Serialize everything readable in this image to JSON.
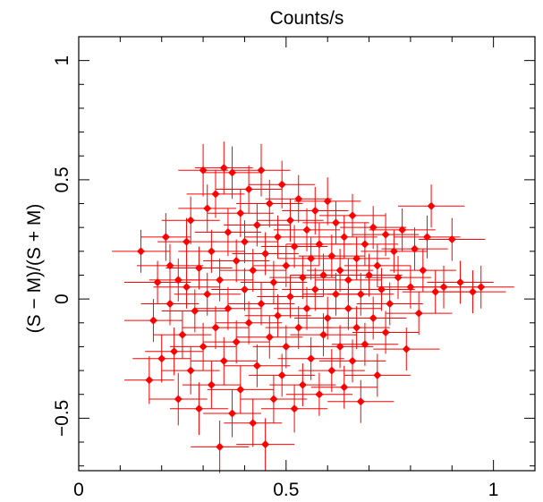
{
  "chart_data": {
    "type": "scatter",
    "title": "Counts/s",
    "xlabel": "",
    "ylabel": "(S − M)/(S + M)",
    "xlim": [
      0,
      1.1
    ],
    "ylim": [
      -0.72,
      1.1
    ],
    "x_ticks": [
      0,
      0.5,
      1
    ],
    "x_tick_labels": [
      "0",
      "0.5",
      "1"
    ],
    "y_ticks": [
      -0.5,
      0,
      0.5,
      1
    ],
    "y_tick_labels": [
      "−0.5",
      "0",
      "0.5",
      "1"
    ],
    "grid": false,
    "marker": "diamond",
    "error_bars": true,
    "color": "#ff0000",
    "series": [
      {
        "points": [
          {
            "x": 0.15,
            "y": 0.2,
            "xerr": 0.07,
            "yerr": 0.09
          },
          {
            "x": 0.17,
            "y": -0.34,
            "xerr": 0.06,
            "yerr": 0.1
          },
          {
            "x": 0.18,
            "y": -0.09,
            "xerr": 0.07,
            "yerr": 0.09
          },
          {
            "x": 0.19,
            "y": 0.07,
            "xerr": 0.08,
            "yerr": 0.09
          },
          {
            "x": 0.2,
            "y": -0.25,
            "xerr": 0.07,
            "yerr": 0.1
          },
          {
            "x": 0.21,
            "y": 0.26,
            "xerr": 0.06,
            "yerr": 0.1
          },
          {
            "x": 0.22,
            "y": -0.02,
            "xerr": 0.07,
            "yerr": 0.09
          },
          {
            "x": 0.22,
            "y": 0.14,
            "xerr": 0.08,
            "yerr": 0.09
          },
          {
            "x": 0.23,
            "y": -0.22,
            "xerr": 0.07,
            "yerr": 0.1
          },
          {
            "x": 0.24,
            "y": 0.08,
            "xerr": 0.07,
            "yerr": 0.09
          },
          {
            "x": 0.24,
            "y": -0.42,
            "xerr": 0.07,
            "yerr": 0.11
          },
          {
            "x": 0.25,
            "y": -0.15,
            "xerr": 0.07,
            "yerr": 0.1
          },
          {
            "x": 0.26,
            "y": 0.05,
            "xerr": 0.08,
            "yerr": 0.09
          },
          {
            "x": 0.26,
            "y": 0.24,
            "xerr": 0.07,
            "yerr": 0.1
          },
          {
            "x": 0.27,
            "y": -0.3,
            "xerr": 0.07,
            "yerr": 0.1
          },
          {
            "x": 0.27,
            "y": 0.33,
            "xerr": 0.07,
            "yerr": 0.1
          },
          {
            "x": 0.28,
            "y": -0.05,
            "xerr": 0.08,
            "yerr": 0.09
          },
          {
            "x": 0.29,
            "y": 0.13,
            "xerr": 0.08,
            "yerr": 0.09
          },
          {
            "x": 0.29,
            "y": -0.46,
            "xerr": 0.07,
            "yerr": 0.11
          },
          {
            "x": 0.3,
            "y": 0.54,
            "xerr": 0.06,
            "yerr": 0.11
          },
          {
            "x": 0.3,
            "y": -0.2,
            "xerr": 0.08,
            "yerr": 0.1
          },
          {
            "x": 0.31,
            "y": 0.38,
            "xerr": 0.07,
            "yerr": 0.1
          },
          {
            "x": 0.31,
            "y": 0.02,
            "xerr": 0.08,
            "yerr": 0.09
          },
          {
            "x": 0.32,
            "y": -0.36,
            "xerr": 0.07,
            "yerr": 0.1
          },
          {
            "x": 0.32,
            "y": 0.2,
            "xerr": 0.08,
            "yerr": 0.09
          },
          {
            "x": 0.33,
            "y": -0.12,
            "xerr": 0.08,
            "yerr": 0.09
          },
          {
            "x": 0.33,
            "y": 0.44,
            "xerr": 0.07,
            "yerr": 0.1
          },
          {
            "x": 0.34,
            "y": -0.62,
            "xerr": 0.07,
            "yerr": 0.11
          },
          {
            "x": 0.34,
            "y": 0.08,
            "xerr": 0.08,
            "yerr": 0.09
          },
          {
            "x": 0.35,
            "y": 0.55,
            "xerr": 0.07,
            "yerr": 0.11
          },
          {
            "x": 0.35,
            "y": -0.26,
            "xerr": 0.08,
            "yerr": 0.1
          },
          {
            "x": 0.36,
            "y": 0.28,
            "xerr": 0.08,
            "yerr": 0.1
          },
          {
            "x": 0.36,
            "y": -0.04,
            "xerr": 0.08,
            "yerr": 0.09
          },
          {
            "x": 0.37,
            "y": 0.53,
            "xerr": 0.07,
            "yerr": 0.11
          },
          {
            "x": 0.37,
            "y": -0.48,
            "xerr": 0.07,
            "yerr": 0.1
          },
          {
            "x": 0.38,
            "y": 0.16,
            "xerr": 0.08,
            "yerr": 0.09
          },
          {
            "x": 0.38,
            "y": -0.18,
            "xerr": 0.08,
            "yerr": 0.09
          },
          {
            "x": 0.39,
            "y": 0.36,
            "xerr": 0.08,
            "yerr": 0.1
          },
          {
            "x": 0.39,
            "y": -0.38,
            "xerr": 0.08,
            "yerr": 0.1
          },
          {
            "x": 0.4,
            "y": 0.04,
            "xerr": 0.08,
            "yerr": 0.09
          },
          {
            "x": 0.4,
            "y": 0.24,
            "xerr": 0.08,
            "yerr": 0.09
          },
          {
            "x": 0.41,
            "y": -0.1,
            "xerr": 0.08,
            "yerr": 0.09
          },
          {
            "x": 0.41,
            "y": 0.46,
            "xerr": 0.08,
            "yerr": 0.1
          },
          {
            "x": 0.42,
            "y": -0.52,
            "xerr": 0.07,
            "yerr": 0.1
          },
          {
            "x": 0.42,
            "y": 0.12,
            "xerr": 0.08,
            "yerr": 0.09
          },
          {
            "x": 0.43,
            "y": -0.28,
            "xerr": 0.08,
            "yerr": 0.09
          },
          {
            "x": 0.43,
            "y": 0.31,
            "xerr": 0.08,
            "yerr": 0.09
          },
          {
            "x": 0.44,
            "y": 0.54,
            "xerr": 0.07,
            "yerr": 0.11
          },
          {
            "x": 0.44,
            "y": -0.02,
            "xerr": 0.08,
            "yerr": 0.09
          },
          {
            "x": 0.45,
            "y": 0.19,
            "xerr": 0.08,
            "yerr": 0.09
          },
          {
            "x": 0.45,
            "y": -0.61,
            "xerr": 0.07,
            "yerr": 0.11
          },
          {
            "x": 0.46,
            "y": -0.16,
            "xerr": 0.08,
            "yerr": 0.09
          },
          {
            "x": 0.46,
            "y": 0.4,
            "xerr": 0.08,
            "yerr": 0.1
          },
          {
            "x": 0.47,
            "y": 0.07,
            "xerr": 0.08,
            "yerr": 0.09
          },
          {
            "x": 0.47,
            "y": -0.42,
            "xerr": 0.08,
            "yerr": 0.1
          },
          {
            "x": 0.48,
            "y": 0.26,
            "xerr": 0.08,
            "yerr": 0.09
          },
          {
            "x": 0.48,
            "y": -0.07,
            "xerr": 0.08,
            "yerr": 0.09
          },
          {
            "x": 0.49,
            "y": 0.48,
            "xerr": 0.08,
            "yerr": 0.1
          },
          {
            "x": 0.49,
            "y": -0.32,
            "xerr": 0.08,
            "yerr": 0.09
          },
          {
            "x": 0.5,
            "y": 0.14,
            "xerr": 0.08,
            "yerr": 0.09
          },
          {
            "x": 0.5,
            "y": -0.2,
            "xerr": 0.08,
            "yerr": 0.09
          },
          {
            "x": 0.51,
            "y": 0.33,
            "xerr": 0.08,
            "yerr": 0.09
          },
          {
            "x": 0.51,
            "y": 0.01,
            "xerr": 0.08,
            "yerr": 0.09
          },
          {
            "x": 0.52,
            "y": -0.46,
            "xerr": 0.08,
            "yerr": 0.1
          },
          {
            "x": 0.52,
            "y": 0.22,
            "xerr": 0.08,
            "yerr": 0.09
          },
          {
            "x": 0.53,
            "y": -0.12,
            "xerr": 0.08,
            "yerr": 0.09
          },
          {
            "x": 0.53,
            "y": 0.42,
            "xerr": 0.08,
            "yerr": 0.1
          },
          {
            "x": 0.54,
            "y": 0.09,
            "xerr": 0.08,
            "yerr": 0.09
          },
          {
            "x": 0.54,
            "y": -0.36,
            "xerr": 0.08,
            "yerr": 0.09
          },
          {
            "x": 0.55,
            "y": 0.29,
            "xerr": 0.08,
            "yerr": 0.09
          },
          {
            "x": 0.55,
            "y": -0.04,
            "xerr": 0.08,
            "yerr": 0.09
          },
          {
            "x": 0.56,
            "y": 0.17,
            "xerr": 0.08,
            "yerr": 0.09
          },
          {
            "x": 0.56,
            "y": -0.25,
            "xerr": 0.08,
            "yerr": 0.09
          },
          {
            "x": 0.57,
            "y": 0.37,
            "xerr": 0.08,
            "yerr": 0.1
          },
          {
            "x": 0.57,
            "y": 0.04,
            "xerr": 0.08,
            "yerr": 0.09
          },
          {
            "x": 0.58,
            "y": -0.4,
            "xerr": 0.08,
            "yerr": 0.09
          },
          {
            "x": 0.58,
            "y": 0.23,
            "xerr": 0.08,
            "yerr": 0.09
          },
          {
            "x": 0.59,
            "y": -0.15,
            "xerr": 0.08,
            "yerr": 0.09
          },
          {
            "x": 0.59,
            "y": 0.1,
            "xerr": 0.08,
            "yerr": 0.09
          },
          {
            "x": 0.6,
            "y": 0.41,
            "xerr": 0.08,
            "yerr": 0.1
          },
          {
            "x": 0.6,
            "y": -0.08,
            "xerr": 0.08,
            "yerr": 0.09
          },
          {
            "x": 0.61,
            "y": 0.18,
            "xerr": 0.08,
            "yerr": 0.09
          },
          {
            "x": 0.61,
            "y": -0.3,
            "xerr": 0.08,
            "yerr": 0.09
          },
          {
            "x": 0.62,
            "y": 0.02,
            "xerr": 0.08,
            "yerr": 0.09
          },
          {
            "x": 0.62,
            "y": 0.32,
            "xerr": 0.08,
            "yerr": 0.09
          },
          {
            "x": 0.63,
            "y": -0.2,
            "xerr": 0.08,
            "yerr": 0.09
          },
          {
            "x": 0.63,
            "y": 0.12,
            "xerr": 0.08,
            "yerr": 0.09
          },
          {
            "x": 0.64,
            "y": -0.37,
            "xerr": 0.08,
            "yerr": 0.09
          },
          {
            "x": 0.64,
            "y": 0.26,
            "xerr": 0.08,
            "yerr": 0.09
          },
          {
            "x": 0.65,
            "y": -0.04,
            "xerr": 0.08,
            "yerr": 0.09
          },
          {
            "x": 0.65,
            "y": 0.08,
            "xerr": 0.08,
            "yerr": 0.09
          },
          {
            "x": 0.66,
            "y": -0.26,
            "xerr": 0.08,
            "yerr": 0.09
          },
          {
            "x": 0.66,
            "y": 0.35,
            "xerr": 0.08,
            "yerr": 0.09
          },
          {
            "x": 0.67,
            "y": -0.12,
            "xerr": 0.08,
            "yerr": 0.09
          },
          {
            "x": 0.67,
            "y": 0.17,
            "xerr": 0.08,
            "yerr": 0.09
          },
          {
            "x": 0.68,
            "y": 0.02,
            "xerr": 0.08,
            "yerr": 0.09
          },
          {
            "x": 0.68,
            "y": -0.43,
            "xerr": 0.08,
            "yerr": 0.09
          },
          {
            "x": 0.69,
            "y": 0.23,
            "xerr": 0.08,
            "yerr": 0.09
          },
          {
            "x": 0.69,
            "y": -0.19,
            "xerr": 0.08,
            "yerr": 0.09
          },
          {
            "x": 0.7,
            "y": 0.1,
            "xerr": 0.08,
            "yerr": 0.09
          },
          {
            "x": 0.71,
            "y": -0.08,
            "xerr": 0.08,
            "yerr": 0.09
          },
          {
            "x": 0.71,
            "y": 0.3,
            "xerr": 0.08,
            "yerr": 0.09
          },
          {
            "x": 0.72,
            "y": -0.32,
            "xerr": 0.08,
            "yerr": 0.09
          },
          {
            "x": 0.72,
            "y": 0.14,
            "xerr": 0.08,
            "yerr": 0.09
          },
          {
            "x": 0.73,
            "y": 0.04,
            "xerr": 0.08,
            "yerr": 0.09
          },
          {
            "x": 0.74,
            "y": -0.14,
            "xerr": 0.08,
            "yerr": 0.09
          },
          {
            "x": 0.74,
            "y": 0.27,
            "xerr": 0.08,
            "yerr": 0.09
          },
          {
            "x": 0.75,
            "y": -0.02,
            "xerr": 0.08,
            "yerr": 0.09
          },
          {
            "x": 0.76,
            "y": 0.2,
            "xerr": 0.08,
            "yerr": 0.09
          },
          {
            "x": 0.77,
            "y": 0.09,
            "xerr": 0.08,
            "yerr": 0.09
          },
          {
            "x": 0.78,
            "y": 0.29,
            "xerr": 0.08,
            "yerr": 0.09
          },
          {
            "x": 0.79,
            "y": -0.21,
            "xerr": 0.08,
            "yerr": 0.09
          },
          {
            "x": 0.8,
            "y": 0.05,
            "xerr": 0.08,
            "yerr": 0.09
          },
          {
            "x": 0.81,
            "y": 0.21,
            "xerr": 0.08,
            "yerr": 0.09
          },
          {
            "x": 0.82,
            "y": -0.06,
            "xerr": 0.08,
            "yerr": 0.09
          },
          {
            "x": 0.83,
            "y": 0.12,
            "xerr": 0.08,
            "yerr": 0.09
          },
          {
            "x": 0.84,
            "y": 0.26,
            "xerr": 0.08,
            "yerr": 0.09
          },
          {
            "x": 0.85,
            "y": 0.39,
            "xerr": 0.08,
            "yerr": 0.09
          },
          {
            "x": 0.86,
            "y": 0.03,
            "xerr": 0.08,
            "yerr": 0.09
          },
          {
            "x": 0.88,
            "y": 0.05,
            "xerr": 0.08,
            "yerr": 0.09
          },
          {
            "x": 0.9,
            "y": 0.25,
            "xerr": 0.08,
            "yerr": 0.09
          },
          {
            "x": 0.92,
            "y": 0.07,
            "xerr": 0.08,
            "yerr": 0.09
          },
          {
            "x": 0.95,
            "y": 0.03,
            "xerr": 0.08,
            "yerr": 0.09
          },
          {
            "x": 0.97,
            "y": 0.05,
            "xerr": 0.08,
            "yerr": 0.09
          }
        ]
      }
    ]
  }
}
